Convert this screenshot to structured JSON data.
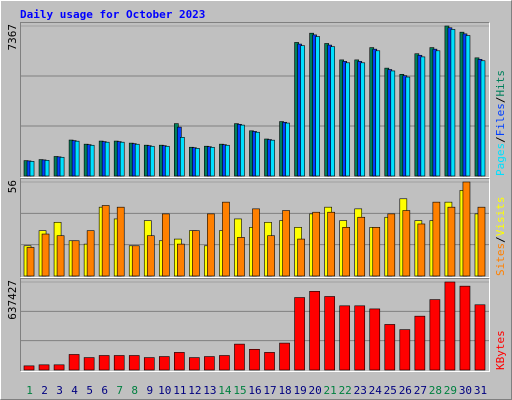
{
  "title": "Daily usage for October 2023",
  "legend_separator": "/",
  "category_colors": [
    "#008040",
    "#000080",
    "#000080",
    "#000080",
    "#000080",
    "#000080",
    "#008040",
    "#008040",
    "#000080",
    "#000080",
    "#000080",
    "#000080",
    "#000080",
    "#008040",
    "#008040",
    "#000080",
    "#000080",
    "#000080",
    "#000080",
    "#000080",
    "#008040",
    "#008040",
    "#000080",
    "#000080",
    "#000080",
    "#000080",
    "#000080",
    "#008040",
    "#008040",
    "#000080",
    "#000080"
  ],
  "chart_data": [
    {
      "type": "bar",
      "ylim": [
        0,
        7367
      ],
      "yticks": [
        7367
      ],
      "series": [
        {
          "name": "Hits",
          "color": "#00805c",
          "values": [
            757,
            807,
            959,
            1766,
            1564,
            1716,
            1716,
            1615,
            1514,
            1514,
            2573,
            1413,
            1463,
            1564,
            2573,
            2220,
            1817,
            2674,
            6560,
            7014,
            6509,
            5702,
            5702,
            6307,
            5298,
            4995,
            6005,
            6307,
            7367,
            7064,
            5803
          ]
        },
        {
          "name": "Files",
          "color": "#0040ff",
          "values": [
            740,
            790,
            940,
            1740,
            1540,
            1690,
            1690,
            1590,
            1490,
            1490,
            2400,
            1390,
            1440,
            1540,
            2540,
            2190,
            1790,
            2640,
            6480,
            6930,
            6430,
            5630,
            5630,
            6230,
            5230,
            4930,
            5930,
            6230,
            7280,
            6980,
            5730
          ]
        },
        {
          "name": "Pages",
          "color": "#00e0ff",
          "values": [
            720,
            770,
            920,
            1710,
            1510,
            1660,
            1660,
            1560,
            1460,
            1460,
            1900,
            1360,
            1410,
            1510,
            2500,
            2150,
            1760,
            2600,
            6400,
            6850,
            6350,
            5560,
            5560,
            6150,
            5160,
            4860,
            5850,
            6150,
            7200,
            6900,
            5660
          ]
        }
      ]
    },
    {
      "type": "bar",
      "ylim": [
        0,
        56
      ],
      "yticks": [
        56
      ],
      "series": [
        {
          "name": "Visits",
          "color": "#ffff00",
          "values": [
            18,
            27,
            32,
            21,
            19,
            41,
            34,
            18,
            33,
            21,
            22,
            27,
            18,
            27,
            34,
            29,
            32,
            33,
            29,
            37,
            41,
            33,
            40,
            29,
            35,
            46,
            33,
            33,
            44,
            51,
            37
          ]
        },
        {
          "name": "Sites",
          "color": "#ff8000",
          "values": [
            17,
            25,
            24,
            21,
            27,
            42,
            41,
            18,
            24,
            37,
            19,
            27,
            37,
            44,
            23,
            40,
            24,
            39,
            22,
            38,
            38,
            29,
            35,
            29,
            37,
            39,
            31,
            44,
            41,
            56,
            41
          ]
        }
      ]
    },
    {
      "type": "bar",
      "ylim": [
        0,
        637427
      ],
      "yticks": [
        637427
      ],
      "categories": [
        "1",
        "2",
        "3",
        "4",
        "5",
        "6",
        "7",
        "8",
        "9",
        "10",
        "11",
        "12",
        "13",
        "14",
        "15",
        "16",
        "17",
        "18",
        "19",
        "20",
        "21",
        "22",
        "23",
        "24",
        "25",
        "26",
        "27",
        "28",
        "29",
        "30",
        "31"
      ],
      "series": [
        {
          "name": "KBytes",
          "color": "#ff0000",
          "values": [
            29996,
            37495,
            37495,
            112485,
            89988,
            104986,
            104986,
            104986,
            89988,
            97487,
            127483,
            89988,
            97487,
            104986,
            187475,
            149980,
            127483,
            194974,
            524930,
            569924,
            532429,
            464938,
            464938,
            442441,
            329956,
            292461,
            389948,
            509932,
            637427,
            607419,
            472437
          ]
        }
      ]
    }
  ]
}
